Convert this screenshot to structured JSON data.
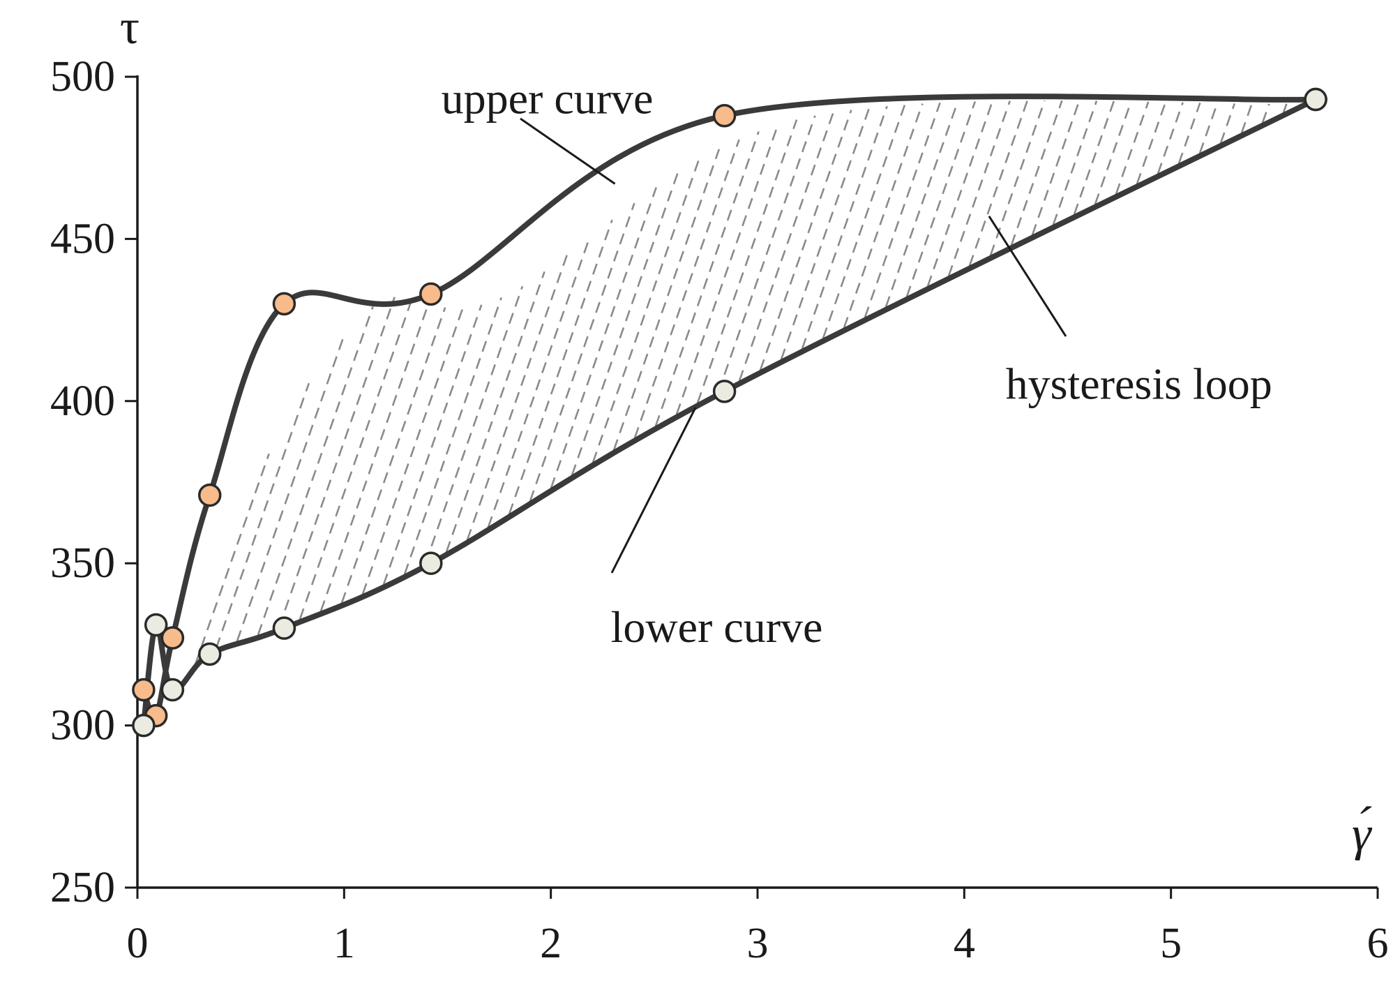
{
  "chart_data": {
    "type": "line",
    "title": "",
    "xlabel": "γ́",
    "ylabel": "τ",
    "xlim": [
      0,
      6
    ],
    "ylim": [
      250,
      500
    ],
    "x_ticks": [
      0,
      1,
      2,
      3,
      4,
      5,
      6
    ],
    "y_ticks": [
      250,
      300,
      350,
      400,
      450,
      500
    ],
    "grid": false,
    "hatched_region": "between upper and lower curve",
    "series": [
      {
        "name": "upper curve",
        "color": "#3a3a3a",
        "marker_color": "#f8bb8c",
        "x": [
          0.03,
          0.09,
          0.17,
          0.35,
          0.71,
          1.42,
          2.84,
          5.7
        ],
        "y": [
          311,
          303,
          327,
          371,
          430,
          433,
          488,
          493
        ]
      },
      {
        "name": "lower curve",
        "color": "#3a3a3a",
        "marker_color": "#ebebe2",
        "x": [
          0.03,
          0.09,
          0.17,
          0.35,
          0.71,
          1.42,
          2.84,
          5.7
        ],
        "y": [
          300,
          331,
          311,
          322,
          330,
          350,
          403,
          493
        ]
      }
    ],
    "annotations": [
      {
        "text": "upper curve",
        "x": 1.47,
        "y": 493,
        "arrow_x": 2.31,
        "arrow_y": 467
      },
      {
        "text": "hysteresis loop",
        "x": 4.2,
        "y": 405,
        "arrow_x": 4.12,
        "arrow_y": 457
      },
      {
        "text": "lower curve",
        "x": 2.29,
        "y": 330,
        "arrow_x": 2.7,
        "arrow_y": 398
      }
    ]
  }
}
